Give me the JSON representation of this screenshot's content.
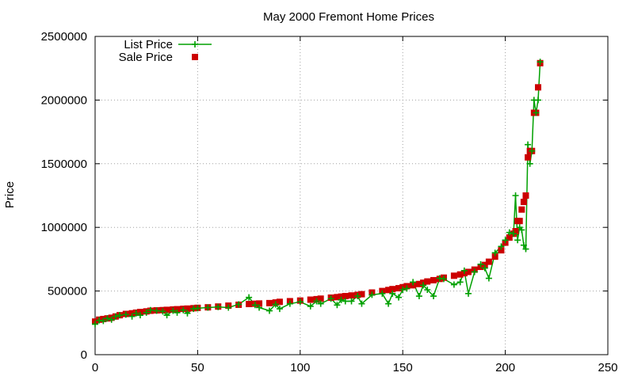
{
  "chart_data": {
    "type": "line",
    "title": "May 2000 Fremont Home Prices",
    "xlabel": "",
    "ylabel": "Price",
    "xlim": [
      0,
      250
    ],
    "ylim": [
      0,
      2500000
    ],
    "xticks": [
      0,
      50,
      100,
      150,
      200,
      250
    ],
    "yticks": [
      0,
      500000,
      1000000,
      1500000,
      2000000,
      2500000
    ],
    "grid": true,
    "legend_position": "top-left",
    "series": [
      {
        "name": "List Price",
        "style": "linespoints",
        "marker": "plus",
        "color": "#00a000",
        "x": [
          0,
          2,
          4,
          6,
          8,
          10,
          12,
          15,
          18,
          20,
          22,
          25,
          27,
          30,
          33,
          35,
          38,
          40,
          43,
          45,
          48,
          50,
          55,
          60,
          65,
          70,
          75,
          78,
          80,
          85,
          88,
          90,
          95,
          100,
          105,
          108,
          110,
          115,
          118,
          120,
          122,
          125,
          128,
          130,
          135,
          140,
          143,
          145,
          148,
          150,
          152,
          155,
          158,
          160,
          162,
          165,
          168,
          170,
          175,
          178,
          180,
          182,
          185,
          188,
          190,
          192,
          195,
          198,
          200,
          202,
          204,
          205,
          206,
          207,
          208,
          209,
          210,
          211,
          212,
          213,
          214,
          215,
          216,
          217
        ],
        "y": [
          240000,
          270000,
          265000,
          285000,
          275000,
          300000,
          310000,
          315000,
          300000,
          325000,
          310000,
          330000,
          350000,
          345000,
          340000,
          310000,
          345000,
          330000,
          350000,
          325000,
          360000,
          365000,
          370000,
          375000,
          370000,
          395000,
          450000,
          390000,
          370000,
          345000,
          395000,
          360000,
          400000,
          415000,
          380000,
          420000,
          400000,
          440000,
          390000,
          430000,
          420000,
          420000,
          460000,
          400000,
          470000,
          480000,
          400000,
          480000,
          450000,
          510000,
          520000,
          570000,
          460000,
          545000,
          510000,
          460000,
          600000,
          595000,
          550000,
          570000,
          660000,
          480000,
          650000,
          710000,
          680000,
          600000,
          800000,
          850000,
          900000,
          960000,
          950000,
          1250000,
          900000,
          1000000,
          980000,
          860000,
          830000,
          1650000,
          1500000,
          1600000,
          2000000,
          1900000,
          2000000,
          2300000
        ]
      },
      {
        "name": "Sale Price",
        "style": "points",
        "marker": "square",
        "color": "#cc0000",
        "x": [
          0,
          2,
          4,
          6,
          8,
          10,
          12,
          15,
          18,
          20,
          22,
          25,
          27,
          30,
          33,
          35,
          38,
          40,
          43,
          45,
          48,
          50,
          55,
          60,
          65,
          70,
          75,
          78,
          80,
          85,
          88,
          90,
          95,
          100,
          105,
          108,
          110,
          115,
          118,
          120,
          122,
          125,
          128,
          130,
          135,
          140,
          143,
          145,
          148,
          150,
          152,
          155,
          158,
          160,
          162,
          165,
          168,
          170,
          175,
          178,
          180,
          182,
          185,
          188,
          190,
          192,
          195,
          198,
          200,
          202,
          204,
          205,
          206,
          207,
          208,
          209,
          210,
          211,
          212,
          213,
          214,
          215,
          216,
          217
        ],
        "y": [
          260000,
          275000,
          280000,
          285000,
          290000,
          300000,
          310000,
          320000,
          325000,
          330000,
          335000,
          340000,
          345000,
          348000,
          350000,
          352000,
          355000,
          357000,
          360000,
          362000,
          365000,
          368000,
          372000,
          378000,
          385000,
          392000,
          398000,
          400000,
          402000,
          405000,
          410000,
          415000,
          420000,
          425000,
          432000,
          436000,
          440000,
          448000,
          452000,
          456000,
          460000,
          465000,
          470000,
          475000,
          488000,
          500000,
          508000,
          515000,
          522000,
          530000,
          538000,
          545000,
          555000,
          565000,
          575000,
          585000,
          595000,
          605000,
          620000,
          630000,
          640000,
          650000,
          668000,
          690000,
          705000,
          730000,
          770000,
          820000,
          880000,
          920000,
          950000,
          970000,
          1050000,
          1050000,
          1140000,
          1200000,
          1250000,
          1550000,
          1600000,
          1600000,
          1900000,
          1900000,
          2100000,
          2290000
        ]
      }
    ]
  }
}
